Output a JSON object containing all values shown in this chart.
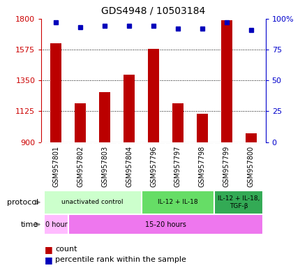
{
  "title": "GDS4948 / 10503184",
  "samples": [
    "GSM957801",
    "GSM957802",
    "GSM957803",
    "GSM957804",
    "GSM957796",
    "GSM957797",
    "GSM957798",
    "GSM957799",
    "GSM957800"
  ],
  "counts": [
    1620,
    1185,
    1265,
    1390,
    1580,
    1185,
    1105,
    1790,
    965
  ],
  "percentile_ranks": [
    97,
    93,
    94,
    94,
    94,
    92,
    92,
    97,
    91
  ],
  "ylim_left": [
    900,
    1800
  ],
  "ylim_right": [
    0,
    100
  ],
  "yticks_left": [
    900,
    1125,
    1350,
    1575,
    1800
  ],
  "yticks_right": [
    0,
    25,
    50,
    75,
    100
  ],
  "bar_color": "#bb0000",
  "dot_color": "#0000bb",
  "bar_bottom": 900,
  "protocol_groups": [
    {
      "label": "unactivated control",
      "start": 0,
      "end": 4,
      "color": "#ccffcc"
    },
    {
      "label": "IL-12 + IL-18",
      "start": 4,
      "end": 7,
      "color": "#66dd66"
    },
    {
      "label": "IL-12 + IL-18,\nTGF-β",
      "start": 7,
      "end": 9,
      "color": "#33aa55"
    }
  ],
  "time_groups": [
    {
      "label": "0 hour",
      "start": 0,
      "end": 1,
      "color": "#ffbbff"
    },
    {
      "label": "15-20 hours",
      "start": 1,
      "end": 9,
      "color": "#ee77ee"
    }
  ],
  "sample_bg_color": "#d8d8d8",
  "left_axis_color": "#cc0000",
  "right_axis_color": "#0000cc"
}
